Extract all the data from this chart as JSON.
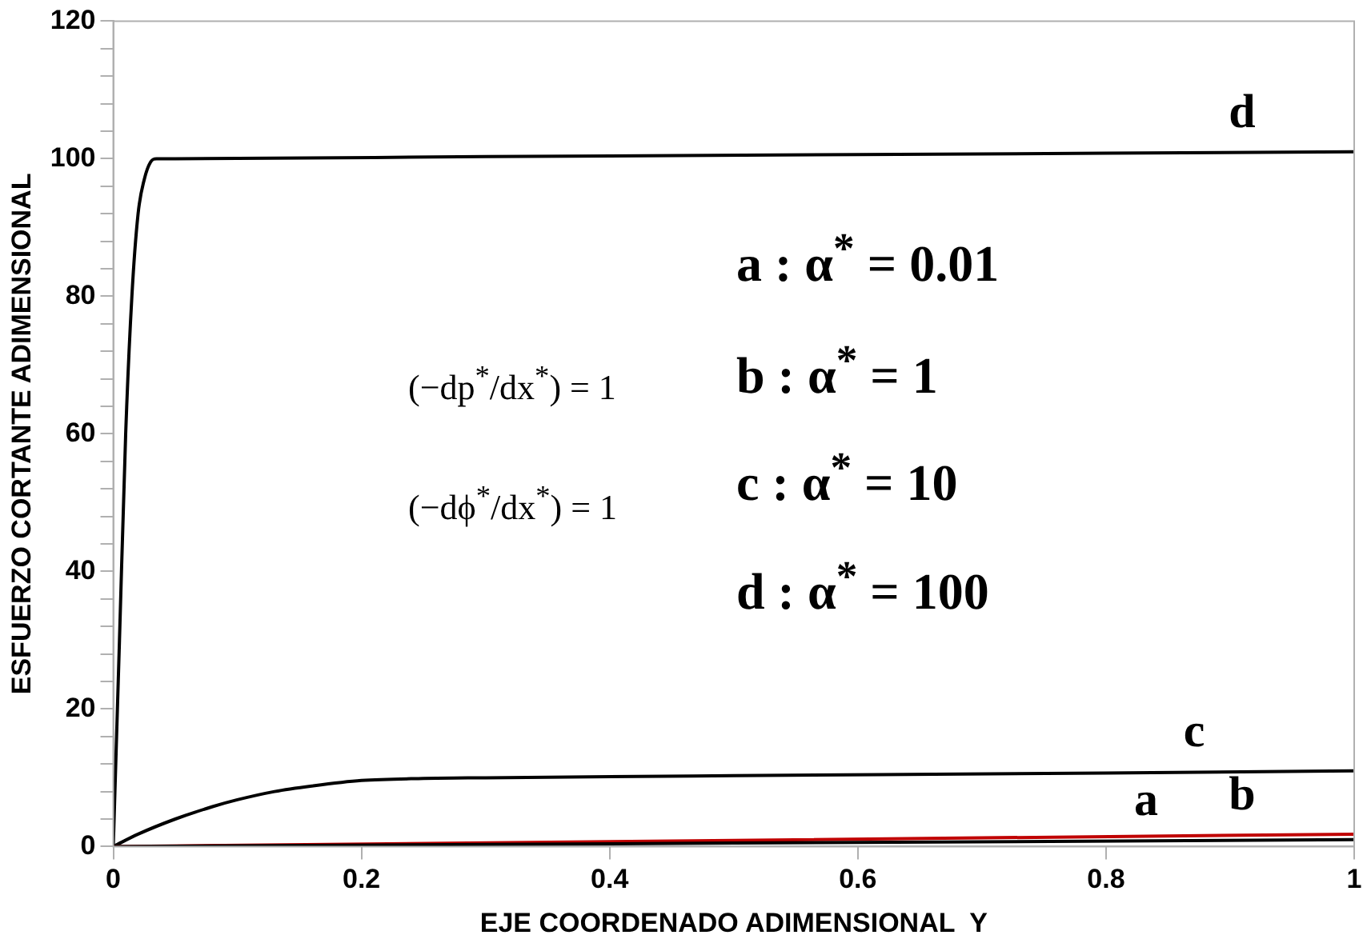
{
  "chart_data": {
    "type": "line",
    "xlabel": "EJE COORDENADO ADIMENSIONAL  Y",
    "ylabel": "ESFUERZO CORTANTE ADIMENSIONAL",
    "xlim": [
      0,
      1
    ],
    "xticks": [
      0,
      0.2,
      0.4,
      0.6,
      0.8,
      1
    ],
    "ylim": [
      0,
      120
    ],
    "yticks": [
      0,
      {
        "value": 4,
        "label": null
      },
      {
        "value": 8,
        "label": null
      },
      {
        "value": 12,
        "label": null
      },
      {
        "value": 16,
        "label": null
      },
      20,
      {
        "value": 24,
        "label": null
      },
      {
        "value": 28,
        "label": null
      },
      {
        "value": 32,
        "label": null
      },
      {
        "value": 36,
        "label": null
      },
      40,
      {
        "value": 44,
        "label": null
      },
      {
        "value": 48,
        "label": null
      },
      {
        "value": 52,
        "label": null
      },
      {
        "value": 56,
        "label": null
      },
      60,
      {
        "value": 64,
        "label": null
      },
      {
        "value": 68,
        "label": null
      },
      {
        "value": 72,
        "label": null
      },
      {
        "value": 76,
        "label": null
      },
      80,
      {
        "value": 84,
        "label": null
      },
      {
        "value": 88,
        "label": null
      },
      {
        "value": 92,
        "label": null
      },
      {
        "value": 96,
        "label": null
      },
      100,
      {
        "value": 104,
        "label": null
      },
      {
        "value": 108,
        "label": null
      },
      {
        "value": 112,
        "label": null
      },
      {
        "value": 116,
        "label": null
      },
      120
    ],
    "grid": false,
    "legend": false,
    "marker": "none",
    "line_style": "solid",
    "series": [
      {
        "name": "a",
        "color": "#000000",
        "x": [
          0,
          0.5,
          1
        ],
        "values": [
          0,
          0.5,
          1
        ]
      },
      {
        "name": "b",
        "color": "#c00000",
        "x": [
          0,
          0.5,
          1
        ],
        "values": [
          0,
          0.9,
          1.8
        ]
      },
      {
        "name": "c",
        "color": "#000000",
        "x": [
          0,
          0.02,
          0.05,
          0.08,
          0.1,
          0.13,
          0.16,
          0.2,
          0.25,
          0.3,
          0.5,
          0.8,
          1
        ],
        "values": [
          0,
          1.8,
          4,
          5.8,
          6.8,
          8,
          8.8,
          9.6,
          9.9,
          10,
          10.3,
          10.7,
          11
        ]
      },
      {
        "name": "d",
        "color": "#000000",
        "x": [
          0,
          0.005,
          0.01,
          0.015,
          0.02,
          0.025,
          0.03,
          0.035,
          0.05,
          0.3,
          0.6,
          1
        ],
        "values": [
          0,
          30,
          60,
          80,
          92,
          97,
          99.5,
          100,
          100,
          100.3,
          100.6,
          101
        ]
      }
    ],
    "annotations": [
      "a : α$^{*}$ = 0.01",
      "b : α$^{*}$ = 1",
      "c : α$^{*}$ = 10",
      "d : α$^{*}$ = 100",
      "(−dp$^{*}$/dx$^{*}$) = 1",
      "(−dϕ$^{*}$/dx$^{*}$) = 1"
    ]
  }
}
